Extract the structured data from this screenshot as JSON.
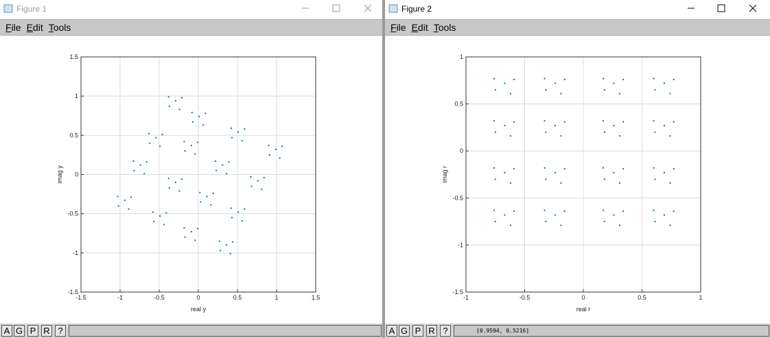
{
  "windows": [
    {
      "title": "Figure 1",
      "menu": [
        "File",
        "Edit",
        "Tools"
      ],
      "buttons": [
        "A",
        "G",
        "P",
        "R",
        "?"
      ]
    },
    {
      "title": "Figure 2",
      "menu": [
        "File",
        "Edit",
        "Tools"
      ],
      "buttons": [
        "A",
        "G",
        "P",
        "R",
        "?"
      ],
      "status": "[0.9594, 0.5216]"
    }
  ],
  "chart_data": [
    {
      "type": "scatter",
      "xlabel": "real y",
      "ylabel": "imag y",
      "color": "#0b6fa4",
      "grid": true,
      "xlim": [
        -1.5,
        1.5
      ],
      "ylim": [
        -1.5,
        1.5
      ],
      "xticks": [
        -1.5,
        -1,
        -0.5,
        0,
        0.5,
        1,
        1.5
      ],
      "yticks": [
        -1.5,
        -1,
        -0.5,
        0,
        0.5,
        1,
        1.5
      ],
      "x": [
        -0.29,
        -0.21,
        -0.38,
        -0.24,
        -0.37,
        0.01,
        0.09,
        -0.08,
        0.06,
        -0.07,
        0.51,
        0.59,
        0.42,
        0.56,
        0.43,
        0.99,
        1.07,
        0.9,
        1.04,
        0.91,
        -0.54,
        -0.46,
        -0.63,
        -0.49,
        -0.62,
        -0.09,
        -0.01,
        -0.18,
        -0.04,
        -0.17,
        0.31,
        0.39,
        0.22,
        0.36,
        0.23,
        0.76,
        0.84,
        0.67,
        0.81,
        0.68,
        -0.74,
        -0.66,
        -0.83,
        -0.69,
        -0.82,
        -0.29,
        -0.21,
        -0.38,
        -0.24,
        -0.37,
        0.11,
        0.19,
        0.02,
        0.16,
        0.03,
        0.51,
        0.59,
        0.42,
        0.56,
        0.43,
        -0.94,
        -0.86,
        -1.03,
        -0.89,
        -1.02,
        -0.49,
        -0.41,
        -0.58,
        -0.44,
        -0.57,
        -0.09,
        -0.01,
        -0.18,
        -0.04,
        -0.17,
        0.36,
        0.44,
        0.27,
        0.41,
        0.28
      ],
      "values": [
        0.94,
        0.98,
        0.99,
        0.83,
        0.87,
        0.74,
        0.78,
        0.79,
        0.63,
        0.67,
        0.54,
        0.58,
        0.59,
        0.43,
        0.47,
        0.32,
        0.36,
        0.37,
        0.21,
        0.25,
        0.47,
        0.51,
        0.52,
        0.36,
        0.4,
        0.37,
        0.41,
        0.42,
        0.26,
        0.3,
        0.12,
        0.16,
        0.17,
        0.01,
        0.05,
        -0.08,
        -0.04,
        -0.03,
        -0.19,
        -0.15,
        0.12,
        0.16,
        0.17,
        0.01,
        0.05,
        -0.1,
        -0.06,
        -0.05,
        -0.21,
        -0.17,
        -0.28,
        -0.24,
        -0.23,
        -0.39,
        -0.35,
        -0.48,
        -0.44,
        -0.43,
        -0.59,
        -0.55,
        -0.33,
        -0.29,
        -0.28,
        -0.44,
        -0.4,
        -0.53,
        -0.49,
        -0.48,
        -0.64,
        -0.6,
        -0.73,
        -0.69,
        -0.68,
        -0.84,
        -0.8,
        -0.9,
        -0.86,
        -0.85,
        -1.01,
        -0.97
      ]
    },
    {
      "type": "scatter",
      "xlabel": "real r",
      "ylabel": "imag r",
      "color": "#0b6fa4",
      "grid": true,
      "xlim": [
        -1,
        1
      ],
      "ylim": [
        -1.5,
        1
      ],
      "xticks": [
        -1,
        -0.5,
        0,
        0.5,
        1
      ],
      "yticks": [
        -1.5,
        -1,
        -0.5,
        0,
        0.5,
        1
      ],
      "x": [
        -0.67,
        -0.59,
        -0.76,
        -0.62,
        -0.75,
        -0.24,
        -0.16,
        -0.33,
        -0.19,
        -0.32,
        0.26,
        0.34,
        0.17,
        0.31,
        0.18,
        0.69,
        0.77,
        0.6,
        0.74,
        0.61,
        -0.67,
        -0.59,
        -0.76,
        -0.62,
        -0.75,
        -0.24,
        -0.16,
        -0.33,
        -0.19,
        -0.32,
        0.26,
        0.34,
        0.17,
        0.31,
        0.18,
        0.69,
        0.77,
        0.6,
        0.74,
        0.61,
        -0.67,
        -0.59,
        -0.76,
        -0.62,
        -0.75,
        -0.24,
        -0.16,
        -0.33,
        -0.19,
        -0.32,
        0.26,
        0.34,
        0.17,
        0.31,
        0.18,
        0.69,
        0.77,
        0.6,
        0.74,
        0.61,
        -0.67,
        -0.59,
        -0.76,
        -0.62,
        -0.75,
        -0.24,
        -0.16,
        -0.33,
        -0.19,
        -0.32,
        0.26,
        0.34,
        0.17,
        0.31,
        0.18,
        0.69,
        0.77,
        0.6,
        0.74,
        0.61
      ],
      "values": [
        0.72,
        0.76,
        0.77,
        0.61,
        0.65,
        0.72,
        0.76,
        0.77,
        0.61,
        0.65,
        0.72,
        0.76,
        0.77,
        0.61,
        0.65,
        0.72,
        0.76,
        0.77,
        0.61,
        0.65,
        0.27,
        0.31,
        0.32,
        0.16,
        0.2,
        0.27,
        0.31,
        0.32,
        0.16,
        0.2,
        0.27,
        0.31,
        0.32,
        0.16,
        0.2,
        0.27,
        0.31,
        0.32,
        0.16,
        0.2,
        -0.23,
        -0.19,
        -0.18,
        -0.34,
        -0.3,
        -0.23,
        -0.19,
        -0.18,
        -0.34,
        -0.3,
        -0.23,
        -0.19,
        -0.18,
        -0.34,
        -0.3,
        -0.23,
        -0.19,
        -0.18,
        -0.34,
        -0.3,
        -0.68,
        -0.64,
        -0.63,
        -0.79,
        -0.75,
        -0.68,
        -0.64,
        -0.63,
        -0.79,
        -0.75,
        -0.68,
        -0.64,
        -0.63,
        -0.79,
        -0.75,
        -0.68,
        -0.64,
        -0.63,
        -0.79,
        -0.75
      ]
    }
  ]
}
